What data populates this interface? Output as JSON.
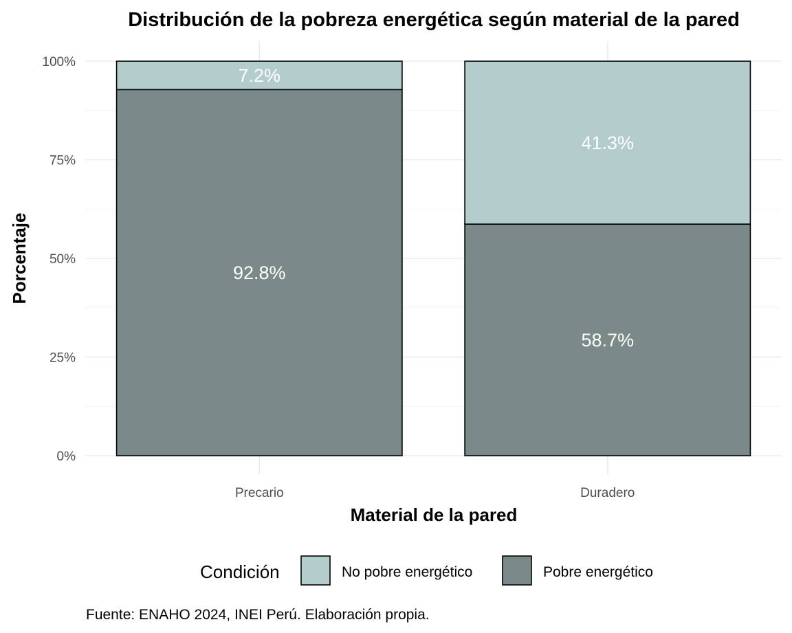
{
  "chart_data": {
    "type": "bar",
    "stacked": true,
    "title": "Distribución de la pobreza energética según material de la pared",
    "xlabel": "Material de la pared",
    "ylabel": "Porcentaje",
    "categories": [
      "Precario",
      "Duradero"
    ],
    "ylim": [
      0,
      100
    ],
    "yticks": [
      0,
      25,
      50,
      75,
      100
    ],
    "ytick_labels": [
      "0%",
      "25%",
      "50%",
      "75%",
      "100%"
    ],
    "series": [
      {
        "name": "Pobre energético",
        "values": [
          92.8,
          58.7
        ],
        "labels": [
          "92.8%",
          "58.7%"
        ],
        "color": "#7a8a89"
      },
      {
        "name": "No pobre energético",
        "values": [
          7.2,
          41.3
        ],
        "labels": [
          "7.2%",
          "41.3%"
        ],
        "color": "#b3cdcd"
      }
    ],
    "legend": {
      "title": "Condición",
      "position": "bottom",
      "order": [
        "No pobre energético",
        "Pobre energético"
      ]
    },
    "caption": "Fuente: ENAHO 2024, INEI Perú. Elaboración propia.",
    "grid": true
  }
}
